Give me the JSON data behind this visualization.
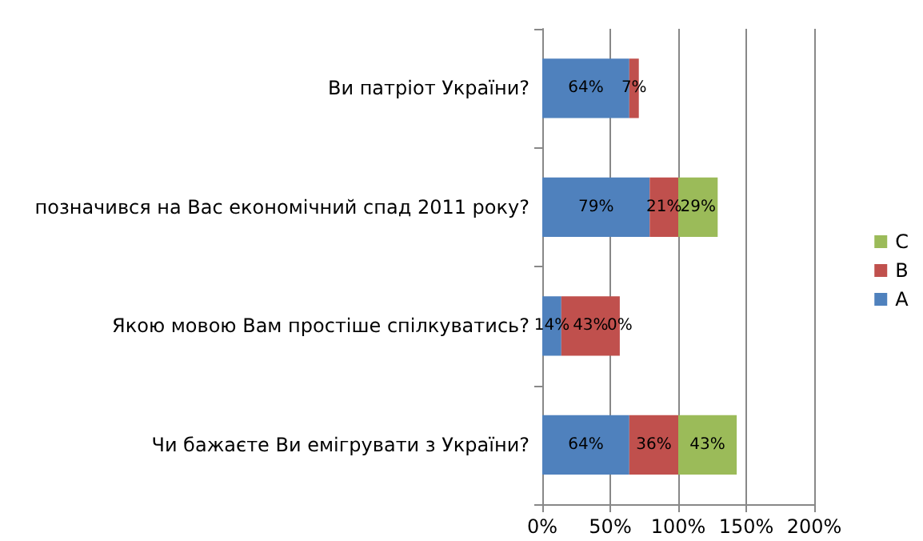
{
  "chart_data": {
    "type": "bar",
    "orientation": "horizontal",
    "stacked": true,
    "categories": [
      "Ви патріот України?",
      "позначився на Вас економічний спад 2011 року?",
      "Якою мовою Вам простіше спілкуватись?",
      "Чи бажаєте Ви емігрувати з України?"
    ],
    "series": [
      {
        "name": "A",
        "color": "#4f81bd",
        "values": [
          64,
          79,
          14,
          64
        ],
        "value_labels": [
          "64%",
          "79%",
          "14%",
          "64%"
        ]
      },
      {
        "name": "B",
        "color": "#c0504d",
        "values": [
          7,
          21,
          43,
          36
        ],
        "value_labels": [
          "7%",
          "21%",
          "43%",
          "36%"
        ]
      },
      {
        "name": "C",
        "color": "#9bbb59",
        "values": [
          null,
          29,
          0,
          43
        ],
        "value_labels": [
          null,
          "29%",
          "0%",
          "43%"
        ]
      }
    ],
    "xlim": [
      0,
      200
    ],
    "xticks": [
      {
        "value": 0,
        "label": "0%"
      },
      {
        "value": 50,
        "label": "50%"
      },
      {
        "value": 100,
        "label": "100%"
      },
      {
        "value": 150,
        "label": "150%"
      },
      {
        "value": 200,
        "label": "200%"
      }
    ],
    "grid": "x",
    "legend": "right"
  }
}
